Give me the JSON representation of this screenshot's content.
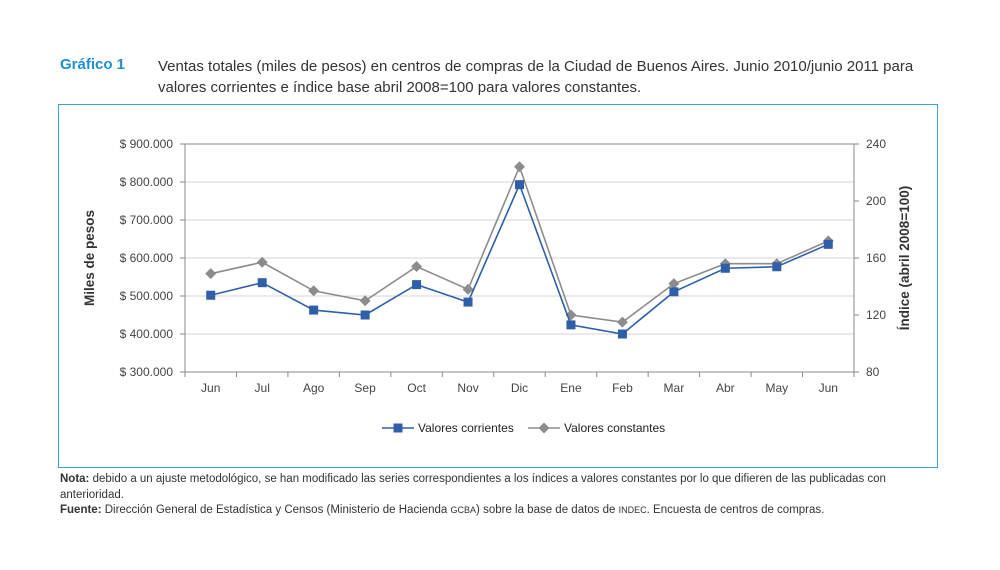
{
  "figure": {
    "label": "Gráfico 1",
    "title": "Ventas totales (miles de pesos) en centros de compras de la Ciudad de Buenos Aires. Junio 2010/junio 2011 para valores corrientes e índice base abril 2008=100 para valores constantes."
  },
  "notes": {
    "nota_label": "Nota:",
    "nota_text": " debido a un ajuste metodológico, se han modificado las series correspondientes a los índices a valores constantes por lo que difieren de las publicadas con anterioridad.",
    "fuente_label": "Fuente:",
    "fuente_text_1": " Dirección General de Estadística y Censos (Ministerio de Hacienda ",
    "fuente_sc_1": "GCBA",
    "fuente_text_2": ") sobre la base de datos de ",
    "fuente_sc_2": "INDEC",
    "fuente_text_3": ". Encuesta de centros de compras."
  },
  "chart_data": {
    "type": "line",
    "categories": [
      "Jun",
      "Jul",
      "Ago",
      "Sep",
      "Oct",
      "Nov",
      "Dic",
      "Ene",
      "Feb",
      "Mar",
      "Abr",
      "May",
      "Jun"
    ],
    "ylabel": "Miles de pesos",
    "y2label": "Índice (abril 2008=100)",
    "ylim": [
      300000,
      900000
    ],
    "y2lim": [
      80,
      240
    ],
    "yticks": [
      300000,
      400000,
      500000,
      600000,
      700000,
      800000,
      900000
    ],
    "yticklabels": [
      "$ 300.000",
      "$ 400.000",
      "$ 500.000",
      "$ 600.000",
      "$ 700.000",
      "$ 800.000",
      "$ 900.000"
    ],
    "y2ticks": [
      80,
      120,
      160,
      200,
      240
    ],
    "y2ticklabels": [
      "80",
      "120",
      "160",
      "200",
      "240"
    ],
    "grid": true,
    "legend_position": "bottom",
    "series": [
      {
        "name": "Valores corrientes",
        "axis": "left",
        "marker": "square",
        "color": "#2f5fa8",
        "values": [
          502000,
          535000,
          463000,
          450000,
          530000,
          484000,
          793000,
          424000,
          400000,
          511000,
          573000,
          577000,
          636000
        ]
      },
      {
        "name": "Valores constantes",
        "axis": "right",
        "marker": "diamond",
        "color": "#8c8c8c",
        "values": [
          149,
          157,
          137,
          130,
          154,
          138,
          224,
          120,
          115,
          142,
          156,
          156,
          172
        ]
      }
    ]
  }
}
